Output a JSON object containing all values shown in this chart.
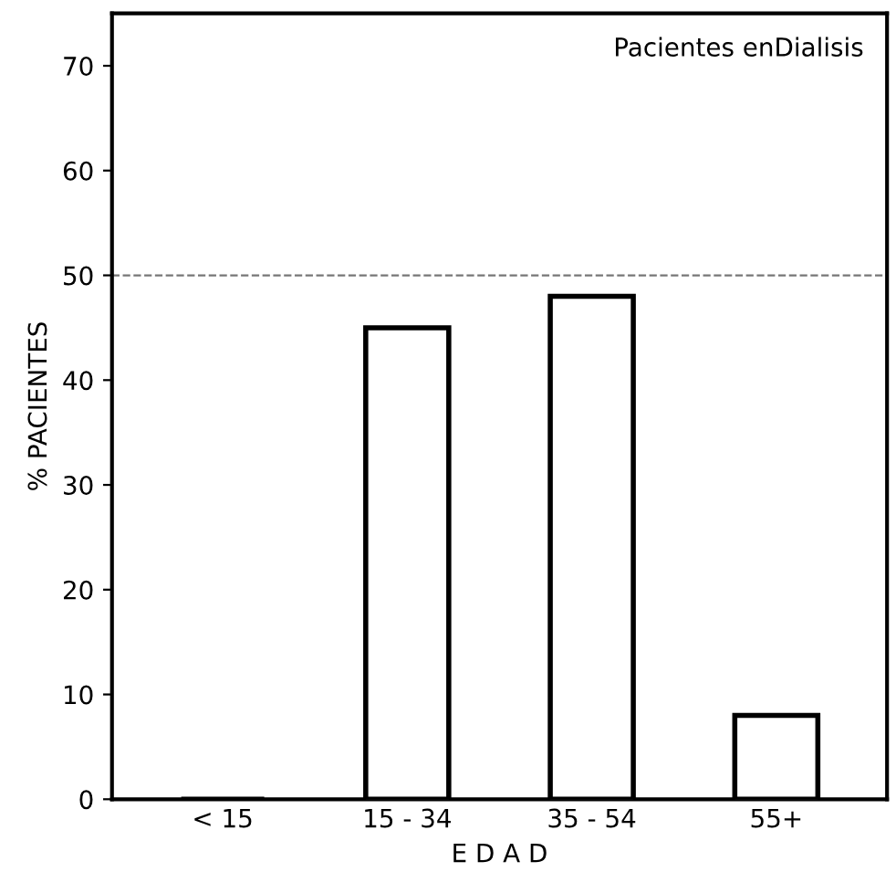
{
  "chart_data": {
    "type": "bar",
    "title": "Pacientes enDialisis",
    "xlabel": "E D A D",
    "ylabel": "% PACIENTES",
    "categories": [
      "< 15",
      "15 - 34",
      "35 - 54",
      "55+"
    ],
    "values": [
      0,
      45,
      48,
      8
    ],
    "color": "#000000",
    "ylim": [
      0,
      75
    ],
    "yticks": [
      0,
      10,
      20,
      30,
      40,
      50,
      60,
      70
    ],
    "ref_lines": [
      {
        "axis": "y",
        "value": 50,
        "color": "#777777",
        "line_style": "dashed"
      }
    ],
    "grid": false
  }
}
